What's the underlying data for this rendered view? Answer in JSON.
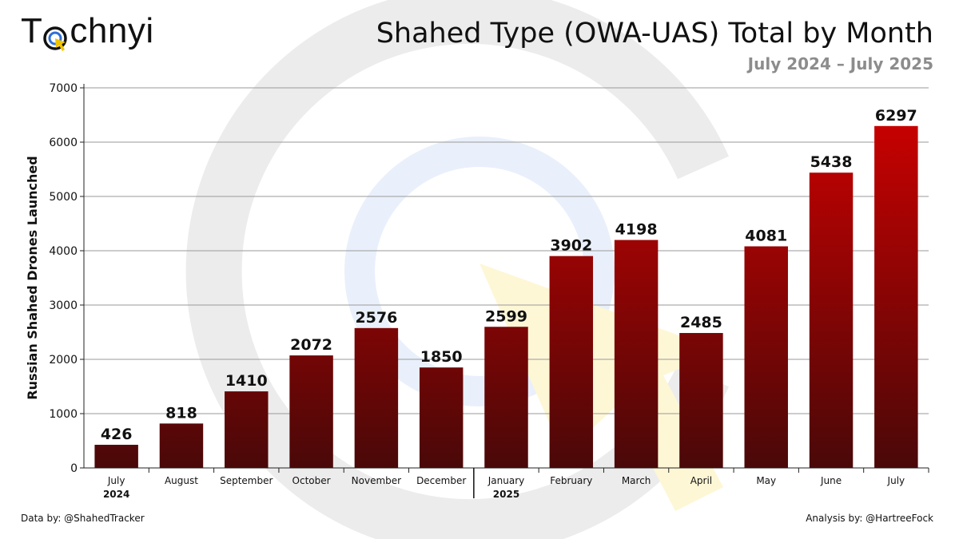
{
  "brand": {
    "logo_prefix": "T",
    "logo_suffix": "chnyi",
    "logo_icon": "target-cursor-icon"
  },
  "header": {
    "title": "Shahed Type (OWA-UAS) Total by Month",
    "subtitle": "July 2024 – July 2025"
  },
  "footer": {
    "left": "Data by: @ShahedTracker",
    "right": "Analysis by: @HartreeFock"
  },
  "colors": {
    "bar_top": "#d40000",
    "bar_bottom": "#4a0808",
    "grid": "#9a9a9a",
    "watermark": "#ececec",
    "watermark_blue": "#e9f0fb",
    "watermark_yellow": "#fdf7d6"
  },
  "chart_data": {
    "type": "bar",
    "ylabel": "Russian Shahed Drones Launched",
    "xlabel": "",
    "ylim": [
      0,
      7000
    ],
    "yticks": [
      0,
      1000,
      2000,
      3000,
      4000,
      5000,
      6000,
      7000
    ],
    "grid": true,
    "categories": [
      [
        "July",
        "2024"
      ],
      [
        "August"
      ],
      [
        "September"
      ],
      [
        "October"
      ],
      [
        "November"
      ],
      [
        "December"
      ],
      [
        "January",
        "2025"
      ],
      [
        "February"
      ],
      [
        "March"
      ],
      [
        "April"
      ],
      [
        "May"
      ],
      [
        "June"
      ],
      [
        "July"
      ]
    ],
    "values": [
      426,
      818,
      1410,
      2072,
      2576,
      1850,
      2599,
      3902,
      4198,
      2485,
      4081,
      5438,
      6297
    ],
    "year_divider_after_index": 5
  }
}
